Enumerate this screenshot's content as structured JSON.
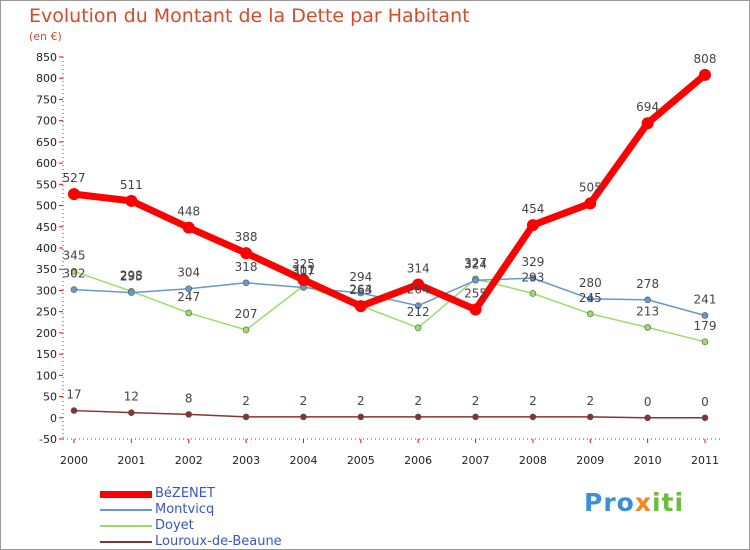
{
  "chart_data": {
    "type": "line",
    "title": "Evolution du Montant de la Dette par Habitant",
    "unit_label": "(en €)",
    "xlabel": "",
    "ylabel": "",
    "ylim": [
      -50,
      850
    ],
    "y_ticks": [
      850,
      800,
      750,
      700,
      650,
      600,
      550,
      500,
      450,
      400,
      350,
      300,
      250,
      200,
      150,
      100,
      50,
      0,
      -50
    ],
    "categories": [
      "2000",
      "2001",
      "2002",
      "2003",
      "2004",
      "2005",
      "2006",
      "2007",
      "2008",
      "2009",
      "2010",
      "2011"
    ],
    "series": [
      {
        "name": "BéZENET",
        "color": "#ff0000",
        "values": [
          527,
          511,
          448,
          388,
          325,
          263,
          314,
          255,
          454,
          505,
          694,
          808
        ]
      },
      {
        "name": "Montvicq",
        "color": "#6699cc",
        "values": [
          302,
          295,
          304,
          318,
          307,
          294,
          264,
          324,
          329,
          280,
          278,
          241
        ]
      },
      {
        "name": "Doyet",
        "color": "#99dd66",
        "values": [
          345,
          298,
          247,
          207,
          311,
          264,
          212,
          327,
          293,
          245,
          213,
          179
        ]
      },
      {
        "name": "Louroux-de-Beaune",
        "color": "#883333",
        "values": [
          17,
          12,
          8,
          2,
          2,
          2,
          2,
          2,
          2,
          2,
          0,
          0
        ]
      }
    ],
    "legend_position": "bottom-left",
    "grid": false
  },
  "logo": {
    "part1": "Pro",
    "part2": "x",
    "part3": "iti"
  }
}
